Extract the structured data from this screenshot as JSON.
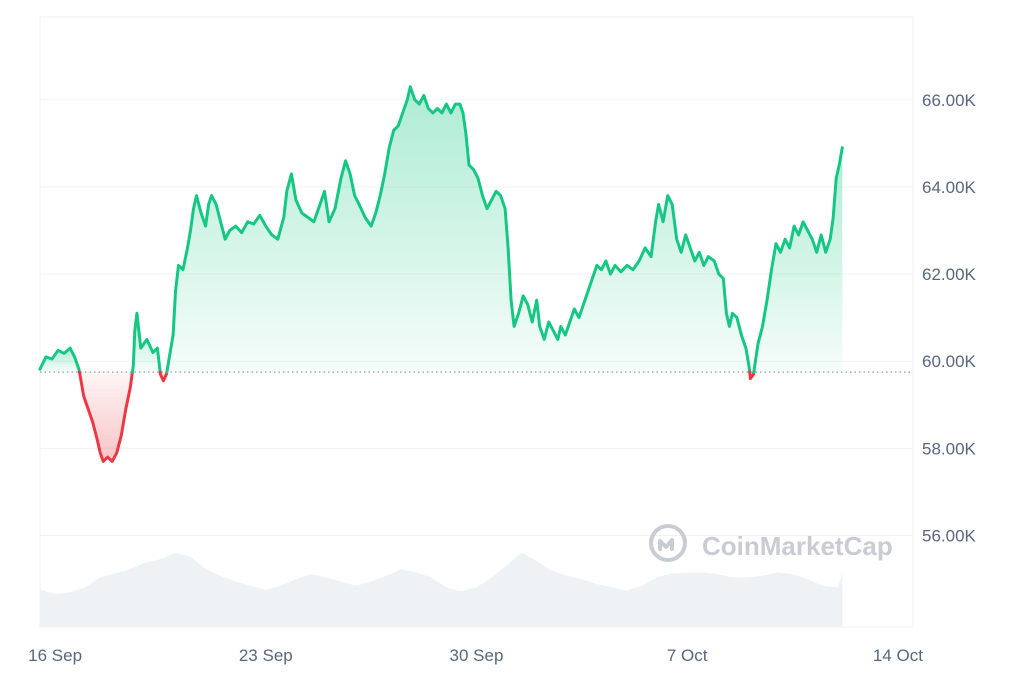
{
  "chart_data": {
    "type": "area",
    "baseline": 59.75,
    "ylim": [
      53.9,
      67.9
    ],
    "y_ticks": [
      {
        "value": 56,
        "label": "56.00K"
      },
      {
        "value": 58,
        "label": "58.00K"
      },
      {
        "value": 60,
        "label": "60.00K"
      },
      {
        "value": 62,
        "label": "62.00K"
      },
      {
        "value": 64,
        "label": "64.00K"
      },
      {
        "value": 66,
        "label": "66.00K"
      }
    ],
    "x_ticks": [
      {
        "x": 0.5,
        "label": "16 Sep"
      },
      {
        "x": 7.5,
        "label": "23 Sep"
      },
      {
        "x": 14.5,
        "label": "30 Sep"
      },
      {
        "x": 21.5,
        "label": "7 Oct"
      },
      {
        "x": 28.5,
        "label": "14 Oct"
      }
    ],
    "xlim": [
      0,
      29
    ],
    "colors": {
      "up": "#16c784",
      "down": "#ea3943",
      "grid": "#eff2f5",
      "volume": "#eff2f5",
      "label": "#58667e",
      "baseline": "#999999"
    },
    "watermark": "CoinMarketCap",
    "price_series": [
      [
        0.0,
        59.82
      ],
      [
        0.2,
        60.1
      ],
      [
        0.4,
        60.05
      ],
      [
        0.6,
        60.25
      ],
      [
        0.8,
        60.18
      ],
      [
        1.0,
        60.3
      ],
      [
        1.15,
        60.1
      ],
      [
        1.3,
        59.8
      ],
      [
        1.45,
        59.2
      ],
      [
        1.6,
        58.9
      ],
      [
        1.75,
        58.6
      ],
      [
        1.9,
        58.2
      ],
      [
        2.0,
        57.9
      ],
      [
        2.1,
        57.7
      ],
      [
        2.25,
        57.8
      ],
      [
        2.4,
        57.7
      ],
      [
        2.55,
        57.9
      ],
      [
        2.7,
        58.3
      ],
      [
        2.85,
        58.9
      ],
      [
        3.0,
        59.4
      ],
      [
        3.1,
        59.9
      ],
      [
        3.15,
        60.7
      ],
      [
        3.22,
        61.1
      ],
      [
        3.35,
        60.3
      ],
      [
        3.55,
        60.5
      ],
      [
        3.75,
        60.2
      ],
      [
        3.9,
        60.3
      ],
      [
        4.0,
        59.7
      ],
      [
        4.1,
        59.55
      ],
      [
        4.2,
        59.7
      ],
      [
        4.3,
        60.1
      ],
      [
        4.42,
        60.6
      ],
      [
        4.5,
        61.6
      ],
      [
        4.6,
        62.2
      ],
      [
        4.75,
        62.1
      ],
      [
        4.9,
        62.6
      ],
      [
        5.0,
        63.0
      ],
      [
        5.1,
        63.5
      ],
      [
        5.2,
        63.8
      ],
      [
        5.35,
        63.4
      ],
      [
        5.5,
        63.1
      ],
      [
        5.6,
        63.6
      ],
      [
        5.7,
        63.8
      ],
      [
        5.85,
        63.6
      ],
      [
        6.0,
        63.2
      ],
      [
        6.15,
        62.8
      ],
      [
        6.3,
        63.0
      ],
      [
        6.5,
        63.1
      ],
      [
        6.7,
        62.95
      ],
      [
        6.9,
        63.2
      ],
      [
        7.1,
        63.15
      ],
      [
        7.3,
        63.35
      ],
      [
        7.5,
        63.1
      ],
      [
        7.7,
        62.9
      ],
      [
        7.9,
        62.8
      ],
      [
        8.1,
        63.3
      ],
      [
        8.2,
        63.9
      ],
      [
        8.35,
        64.3
      ],
      [
        8.5,
        63.7
      ],
      [
        8.7,
        63.4
      ],
      [
        8.9,
        63.3
      ],
      [
        9.1,
        63.2
      ],
      [
        9.3,
        63.6
      ],
      [
        9.45,
        63.9
      ],
      [
        9.6,
        63.2
      ],
      [
        9.8,
        63.5
      ],
      [
        10.0,
        64.2
      ],
      [
        10.15,
        64.6
      ],
      [
        10.3,
        64.3
      ],
      [
        10.45,
        63.8
      ],
      [
        10.6,
        63.6
      ],
      [
        10.8,
        63.3
      ],
      [
        11.0,
        63.1
      ],
      [
        11.15,
        63.4
      ],
      [
        11.3,
        63.8
      ],
      [
        11.45,
        64.3
      ],
      [
        11.6,
        64.9
      ],
      [
        11.75,
        65.3
      ],
      [
        11.9,
        65.4
      ],
      [
        12.05,
        65.7
      ],
      [
        12.2,
        66.0
      ],
      [
        12.3,
        66.3
      ],
      [
        12.45,
        66.0
      ],
      [
        12.6,
        65.9
      ],
      [
        12.75,
        66.1
      ],
      [
        12.9,
        65.8
      ],
      [
        13.05,
        65.7
      ],
      [
        13.2,
        65.8
      ],
      [
        13.35,
        65.7
      ],
      [
        13.5,
        65.9
      ],
      [
        13.65,
        65.7
      ],
      [
        13.8,
        65.9
      ],
      [
        13.95,
        65.9
      ],
      [
        14.05,
        65.7
      ],
      [
        14.15,
        65.2
      ],
      [
        14.25,
        64.5
      ],
      [
        14.4,
        64.4
      ],
      [
        14.55,
        64.2
      ],
      [
        14.7,
        63.8
      ],
      [
        14.85,
        63.5
      ],
      [
        15.0,
        63.7
      ],
      [
        15.15,
        63.9
      ],
      [
        15.3,
        63.8
      ],
      [
        15.45,
        63.5
      ],
      [
        15.55,
        62.6
      ],
      [
        15.65,
        61.4
      ],
      [
        15.75,
        60.8
      ],
      [
        15.9,
        61.1
      ],
      [
        16.05,
        61.5
      ],
      [
        16.2,
        61.3
      ],
      [
        16.35,
        60.9
      ],
      [
        16.5,
        61.4
      ],
      [
        16.6,
        60.8
      ],
      [
        16.75,
        60.5
      ],
      [
        16.9,
        60.9
      ],
      [
        17.05,
        60.7
      ],
      [
        17.2,
        60.5
      ],
      [
        17.3,
        60.8
      ],
      [
        17.45,
        60.6
      ],
      [
        17.6,
        60.9
      ],
      [
        17.75,
        61.2
      ],
      [
        17.9,
        61.0
      ],
      [
        18.05,
        61.3
      ],
      [
        18.2,
        61.6
      ],
      [
        18.35,
        61.9
      ],
      [
        18.5,
        62.2
      ],
      [
        18.65,
        62.1
      ],
      [
        18.8,
        62.3
      ],
      [
        18.95,
        62.0
      ],
      [
        19.1,
        62.2
      ],
      [
        19.3,
        62.05
      ],
      [
        19.5,
        62.2
      ],
      [
        19.7,
        62.1
      ],
      [
        19.9,
        62.3
      ],
      [
        20.1,
        62.6
      ],
      [
        20.3,
        62.4
      ],
      [
        20.45,
        63.2
      ],
      [
        20.55,
        63.6
      ],
      [
        20.7,
        63.2
      ],
      [
        20.85,
        63.8
      ],
      [
        21.0,
        63.6
      ],
      [
        21.15,
        62.8
      ],
      [
        21.3,
        62.5
      ],
      [
        21.45,
        62.9
      ],
      [
        21.6,
        62.6
      ],
      [
        21.75,
        62.3
      ],
      [
        21.9,
        62.5
      ],
      [
        22.05,
        62.2
      ],
      [
        22.2,
        62.4
      ],
      [
        22.4,
        62.3
      ],
      [
        22.55,
        62.0
      ],
      [
        22.7,
        61.9
      ],
      [
        22.8,
        61.1
      ],
      [
        22.9,
        60.8
      ],
      [
        23.0,
        61.1
      ],
      [
        23.15,
        61.0
      ],
      [
        23.3,
        60.6
      ],
      [
        23.45,
        60.3
      ],
      [
        23.55,
        59.9
      ],
      [
        23.6,
        59.6
      ],
      [
        23.7,
        59.7
      ],
      [
        23.85,
        60.4
      ],
      [
        24.0,
        60.8
      ],
      [
        24.15,
        61.4
      ],
      [
        24.3,
        62.1
      ],
      [
        24.45,
        62.7
      ],
      [
        24.6,
        62.5
      ],
      [
        24.75,
        62.8
      ],
      [
        24.9,
        62.6
      ],
      [
        25.05,
        63.1
      ],
      [
        25.2,
        62.9
      ],
      [
        25.35,
        63.2
      ],
      [
        25.5,
        63.0
      ],
      [
        25.65,
        62.8
      ],
      [
        25.8,
        62.5
      ],
      [
        25.95,
        62.9
      ],
      [
        26.1,
        62.5
      ],
      [
        26.25,
        62.8
      ],
      [
        26.35,
        63.3
      ],
      [
        26.45,
        64.2
      ],
      [
        26.55,
        64.5
      ],
      [
        26.65,
        64.9
      ]
    ],
    "volume_series": [
      [
        0,
        0.45
      ],
      [
        0.5,
        0.4
      ],
      [
        1,
        0.42
      ],
      [
        1.5,
        0.48
      ],
      [
        2,
        0.6
      ],
      [
        2.5,
        0.65
      ],
      [
        3,
        0.7
      ],
      [
        3.5,
        0.78
      ],
      [
        4,
        0.82
      ],
      [
        4.5,
        0.9
      ],
      [
        5,
        0.85
      ],
      [
        5.5,
        0.7
      ],
      [
        6,
        0.62
      ],
      [
        6.5,
        0.55
      ],
      [
        7,
        0.5
      ],
      [
        7.5,
        0.45
      ],
      [
        8,
        0.5
      ],
      [
        8.5,
        0.58
      ],
      [
        9,
        0.64
      ],
      [
        9.5,
        0.6
      ],
      [
        10,
        0.55
      ],
      [
        10.5,
        0.5
      ],
      [
        11,
        0.55
      ],
      [
        11.5,
        0.62
      ],
      [
        12,
        0.7
      ],
      [
        12.5,
        0.66
      ],
      [
        13,
        0.6
      ],
      [
        13.5,
        0.48
      ],
      [
        14,
        0.43
      ],
      [
        14.5,
        0.48
      ],
      [
        15,
        0.6
      ],
      [
        15.5,
        0.75
      ],
      [
        16,
        0.9
      ],
      [
        16.5,
        0.8
      ],
      [
        17,
        0.68
      ],
      [
        17.5,
        0.62
      ],
      [
        18,
        0.58
      ],
      [
        18.5,
        0.52
      ],
      [
        19,
        0.48
      ],
      [
        19.5,
        0.44
      ],
      [
        20,
        0.5
      ],
      [
        20.5,
        0.6
      ],
      [
        21,
        0.65
      ],
      [
        21.5,
        0.66
      ],
      [
        22,
        0.66
      ],
      [
        22.5,
        0.64
      ],
      [
        23,
        0.6
      ],
      [
        23.5,
        0.6
      ],
      [
        24,
        0.62
      ],
      [
        24.5,
        0.66
      ],
      [
        25,
        0.64
      ],
      [
        25.5,
        0.58
      ],
      [
        26,
        0.5
      ],
      [
        26.5,
        0.48
      ],
      [
        26.65,
        0.65
      ]
    ]
  }
}
